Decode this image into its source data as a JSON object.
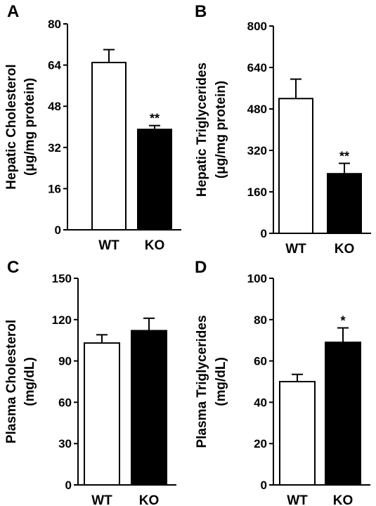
{
  "chart_data": [
    {
      "type": "bar",
      "panel": "A",
      "categories": [
        "WT",
        "KO"
      ],
      "values": [
        65,
        39
      ],
      "errors": [
        5,
        1.5
      ],
      "bar_colors": [
        "#ffffff",
        "#000000"
      ],
      "significance": [
        "",
        "**"
      ],
      "ylabel_line1": "Hepatic Cholesterol",
      "ylabel_line2": "(μg/mg protein)",
      "ylim": [
        0,
        80
      ],
      "yticks": [
        0,
        16,
        32,
        48,
        64,
        80
      ]
    },
    {
      "type": "bar",
      "panel": "B",
      "categories": [
        "WT",
        "KO"
      ],
      "values": [
        520,
        230
      ],
      "errors": [
        75,
        40
      ],
      "bar_colors": [
        "#ffffff",
        "#000000"
      ],
      "significance": [
        "",
        "**"
      ],
      "ylabel_line1": "Hepatic Triglycerides",
      "ylabel_line2": "(μg/mg protein)",
      "ylim": [
        0,
        800
      ],
      "yticks": [
        0,
        160,
        320,
        480,
        640,
        800
      ]
    },
    {
      "type": "bar",
      "panel": "C",
      "categories": [
        "WT",
        "KO"
      ],
      "values": [
        103,
        112
      ],
      "errors": [
        6,
        9
      ],
      "bar_colors": [
        "#ffffff",
        "#000000"
      ],
      "significance": [
        "",
        ""
      ],
      "ylabel_line1": "Plasma Cholesterol",
      "ylabel_line2": "(mg/dL)",
      "ylim": [
        0,
        150
      ],
      "yticks": [
        0,
        30,
        60,
        90,
        120,
        150
      ]
    },
    {
      "type": "bar",
      "panel": "D",
      "categories": [
        "WT",
        "KO"
      ],
      "values": [
        50,
        69
      ],
      "errors": [
        3.5,
        7
      ],
      "bar_colors": [
        "#ffffff",
        "#000000"
      ],
      "significance": [
        "",
        "*"
      ],
      "ylabel_line1": "Plasma Triglycerides",
      "ylabel_line2": "(mg/dL)",
      "ylim": [
        0,
        100
      ],
      "yticks": [
        0,
        20,
        40,
        60,
        80,
        100
      ]
    }
  ]
}
